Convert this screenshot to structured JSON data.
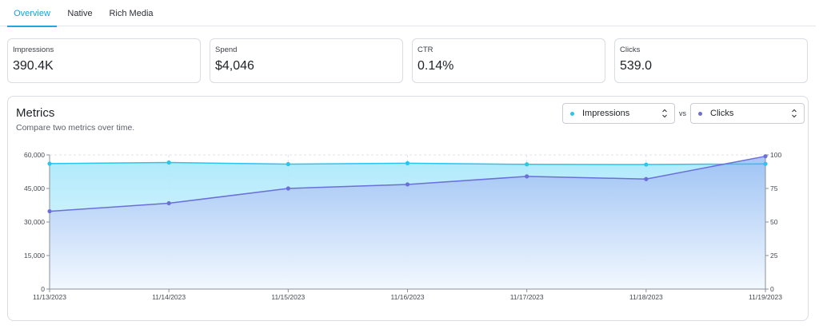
{
  "tabs": [
    {
      "label": "Overview",
      "active": true
    },
    {
      "label": "Native",
      "active": false
    },
    {
      "label": "Rich Media",
      "active": false
    }
  ],
  "cards": [
    {
      "label": "Impressions",
      "value": "390.4K"
    },
    {
      "label": "Spend",
      "value": "$4,046"
    },
    {
      "label": "CTR",
      "value": "0.14%"
    },
    {
      "label": "Clicks",
      "value": "539.0"
    }
  ],
  "panel": {
    "title": "Metrics",
    "subtitle": "Compare two metrics over time.",
    "select_a": {
      "label": "Impressions",
      "color": "#2bc4ef"
    },
    "vs": "vs",
    "select_b": {
      "label": "Clicks",
      "color": "#6b6fd8"
    }
  },
  "chart_data": {
    "type": "area",
    "x": [
      "11/13/2023",
      "11/14/2023",
      "11/15/2023",
      "11/16/2023",
      "11/17/2023",
      "11/18/2023",
      "11/19/2023"
    ],
    "series": [
      {
        "name": "Impressions",
        "axis": "left",
        "color": "#2bc4ef",
        "values": [
          56100,
          56600,
          55900,
          56300,
          55800,
          55700,
          56000
        ]
      },
      {
        "name": "Clicks",
        "axis": "right",
        "color": "#6b6fd8",
        "values": [
          58,
          64,
          75,
          78,
          84,
          82,
          99
        ]
      }
    ],
    "y_left": {
      "ylim": [
        0,
        60000
      ],
      "ticks": [
        "0",
        "15,000",
        "30,000",
        "45,000",
        "60,000"
      ],
      "tick_values": [
        0,
        15000,
        30000,
        45000,
        60000
      ]
    },
    "y_right": {
      "ylim": [
        0,
        100
      ],
      "ticks": [
        "0",
        "25",
        "50",
        "75",
        "100"
      ],
      "tick_values": [
        0,
        25,
        50,
        75,
        100
      ]
    },
    "grid": true,
    "legend": "none"
  }
}
